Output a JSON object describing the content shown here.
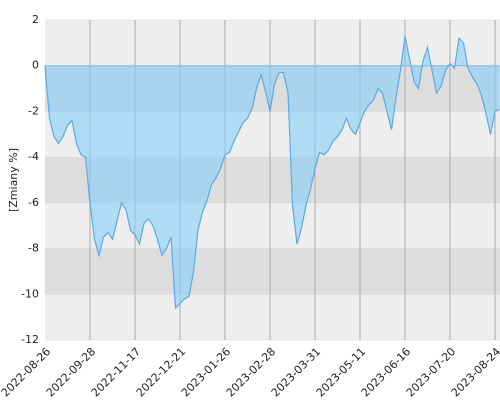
{
  "chart_data": {
    "type": "area",
    "y_label": "[Zmiany %]",
    "categories": [
      "2022-08-26",
      null,
      null,
      null,
      null,
      null,
      null,
      null,
      null,
      null,
      "2022-09-28",
      null,
      null,
      null,
      null,
      null,
      null,
      null,
      null,
      null,
      "2022-11-17",
      null,
      null,
      null,
      null,
      null,
      null,
      null,
      null,
      null,
      "2022-12-21",
      null,
      null,
      null,
      null,
      null,
      null,
      null,
      null,
      null,
      "2023-01-26",
      null,
      null,
      null,
      null,
      null,
      null,
      null,
      null,
      null,
      "2023-02-28",
      null,
      null,
      null,
      null,
      null,
      null,
      null,
      null,
      null,
      "2023-03-31",
      null,
      null,
      null,
      null,
      null,
      null,
      null,
      null,
      null,
      "2023-05-11",
      null,
      null,
      null,
      null,
      null,
      null,
      null,
      null,
      null,
      "2023-06-16",
      null,
      null,
      null,
      null,
      null,
      null,
      null,
      null,
      null,
      "2023-07-20",
      null,
      null,
      null,
      null,
      null,
      null,
      null,
      null,
      null,
      "2023-08-24",
      null
    ],
    "values": [
      0,
      -2.3,
      -3.1,
      -3.4,
      -3.1,
      -2.6,
      -2.4,
      -3.4,
      -3.9,
      -4.0,
      -6.0,
      -7.6,
      -8.3,
      -7.5,
      -7.3,
      -7.6,
      -6.8,
      -6.0,
      -6.3,
      -7.2,
      -7.4,
      -7.8,
      -6.9,
      -6.7,
      -7.0,
      -7.6,
      -8.3,
      -8.0,
      -7.5,
      -10.6,
      -10.4,
      -10.2,
      -10.1,
      -9.0,
      -7.2,
      -6.4,
      -5.9,
      -5.2,
      -4.9,
      -4.5,
      -3.9,
      -3.8,
      -3.3,
      -2.9,
      -2.5,
      -2.3,
      -1.9,
      -1.0,
      -0.4,
      -1.1,
      -2.0,
      -0.8,
      -0.3,
      -0.3,
      -1.2,
      -6.1,
      -7.8,
      -7.1,
      -6.1,
      -5.4,
      -4.5,
      -3.8,
      -3.9,
      -3.7,
      -3.3,
      -3.1,
      -2.8,
      -2.3,
      -2.8,
      -3.0,
      -2.5,
      -2.0,
      -1.7,
      -1.5,
      -1.0,
      -1.2,
      -2.0,
      -2.8,
      -1.4,
      -0.2,
      1.3,
      0.3,
      -0.7,
      -1.0,
      0.2,
      0.8,
      -0.2,
      -1.2,
      -0.9,
      -0.2,
      0.1,
      -0.1,
      1.2,
      1.0,
      -0.1,
      -0.5,
      -0.8,
      -1.3,
      -2.1,
      -3.0,
      -2.0,
      -1.9
    ],
    "color": "#5aaae8",
    "ylim": [
      -12,
      2
    ],
    "yticks": [
      -12,
      -10,
      -8,
      -6,
      -4,
      -2,
      0,
      2
    ],
    "grid": true
  }
}
